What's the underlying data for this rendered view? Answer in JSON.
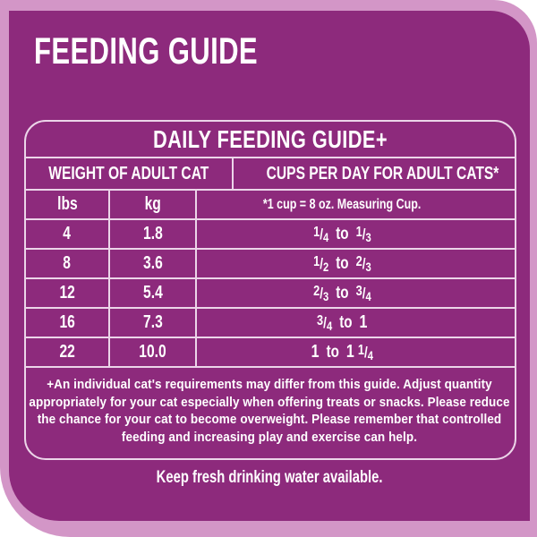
{
  "colors": {
    "background": "#ffffff",
    "band": "#d396c7",
    "panel": "#8d2a7c",
    "line": "#ecd5e9",
    "text": "#ffffff"
  },
  "page": {
    "title": "FEEDING GUIDE",
    "water_note": "Keep fresh drinking water available."
  },
  "table": {
    "title": "DAILY FEEDING GUIDE+",
    "columns": {
      "weight": "WEIGHT OF ADULT CAT",
      "cups": "CUPS PER DAY FOR ADULT CATS*"
    },
    "subcolumns": {
      "lbs": "lbs",
      "kg": "kg",
      "cup_note": "*1 cup = 8 oz. Measuring Cup."
    },
    "range_word": "to",
    "rows": [
      {
        "lbs": "4",
        "kg": "1.8",
        "cups_from": "1/4",
        "cups_to": "1/3"
      },
      {
        "lbs": "8",
        "kg": "3.6",
        "cups_from": "1/2",
        "cups_to": "2/3"
      },
      {
        "lbs": "12",
        "kg": "5.4",
        "cups_from": "2/3",
        "cups_to": "3/4"
      },
      {
        "lbs": "16",
        "kg": "7.3",
        "cups_from": "3/4",
        "cups_to": "1"
      },
      {
        "lbs": "22",
        "kg": "10.0",
        "cups_from": "1",
        "cups_to": "1 1/4"
      }
    ]
  },
  "footnote": "+An individual cat's requirements may differ from this guide.  Adjust quantity appropriately for your cat especially when offering treats or snacks.  Please reduce the chance for your cat to become overweight. Please remember that controlled feeding and increasing play and exercise can help."
}
